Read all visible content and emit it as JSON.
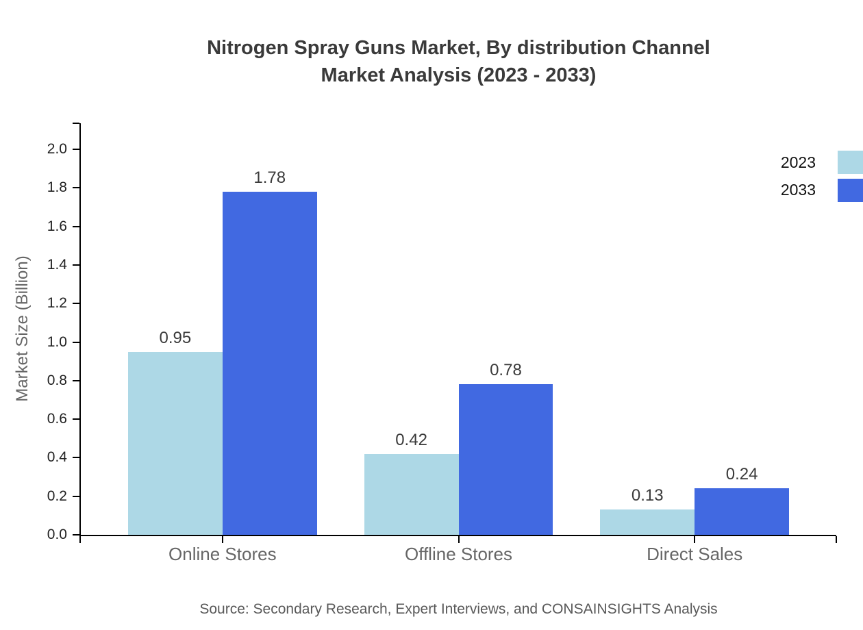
{
  "title": {
    "line1": "Nitrogen Spray Guns Market, By distribution Channel",
    "line2": "Market Analysis (2023 - 2033)"
  },
  "source_note": "Source: Secondary Research, Expert Interviews, and CONSAINSIGHTS Analysis",
  "chart_data": {
    "type": "bar",
    "title": "Nitrogen Spray Guns Market, By distribution Channel Market Analysis (2023 - 2033)",
    "categories": [
      "Online Stores",
      "Offline Stores",
      "Direct Sales"
    ],
    "series": [
      {
        "name": "2023",
        "color": "#ADD8E6",
        "values": [
          0.95,
          0.42,
          0.13
        ]
      },
      {
        "name": "2033",
        "color": "#4169E1",
        "values": [
          1.78,
          0.78,
          0.24
        ]
      }
    ],
    "xlabel": "",
    "ylabel": "Market Size (Billion)",
    "ylim": [
      0.0,
      2.0
    ],
    "y_ticks": [
      "0.0",
      "0.2",
      "0.4",
      "0.6",
      "0.8",
      "1.0",
      "1.2",
      "1.4",
      "1.6",
      "1.8",
      "2.0"
    ],
    "grid": false,
    "legend_position": "upper-right-outside",
    "bar_value_labels": true,
    "bar_value_label_format": "0.00"
  },
  "colors": {
    "title": "#3a3a3a",
    "tick_label": "#222222",
    "category_label": "#666666",
    "axis_label": "#666666",
    "value_label": "#3a3a3a",
    "source": "#595959",
    "spine": "#000000",
    "background": "#ffffff"
  }
}
